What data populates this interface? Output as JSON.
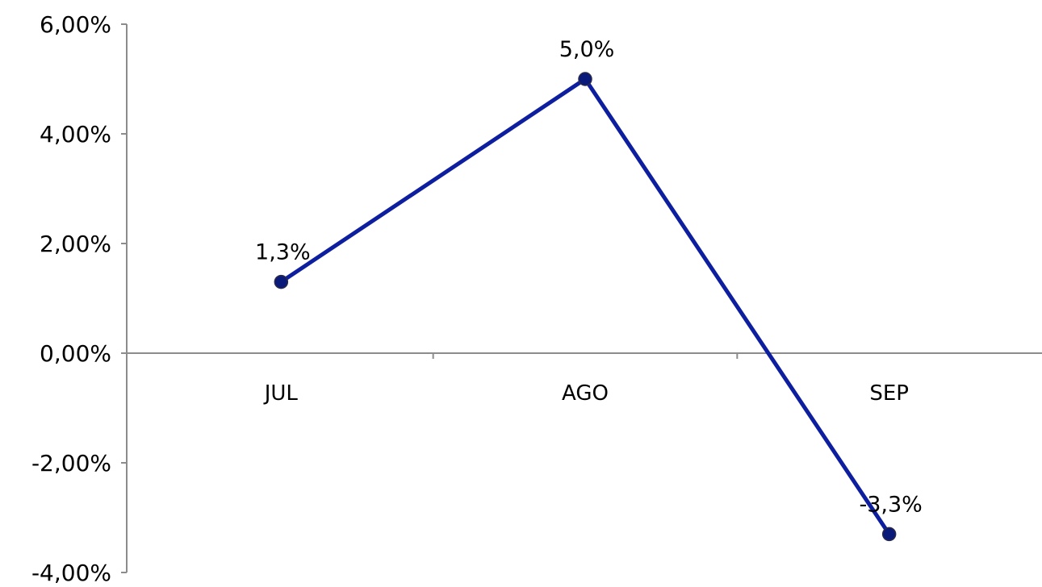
{
  "chart_data": {
    "type": "line",
    "title": "",
    "xlabel": "",
    "ylabel": "",
    "categories": [
      "JUL",
      "AGO",
      "SEP"
    ],
    "series": [
      {
        "values": [
          1.3,
          5.0,
          -3.3
        ],
        "data_labels": [
          "1,3%",
          "5,0%",
          "-3,3%"
        ],
        "color": "#0d1f9e"
      }
    ],
    "ylim": [
      -4,
      6
    ],
    "y_ticks": [
      6,
      4,
      2,
      0,
      -2,
      -4
    ],
    "y_tick_labels": [
      "6,00%",
      "4,00%",
      "2,00%",
      "0,00%",
      "-2,00%",
      "-4,00%"
    ],
    "grid": false,
    "legend": "none",
    "axis_color": "#8c8c8c",
    "marker_color": "#0a1a7a"
  }
}
